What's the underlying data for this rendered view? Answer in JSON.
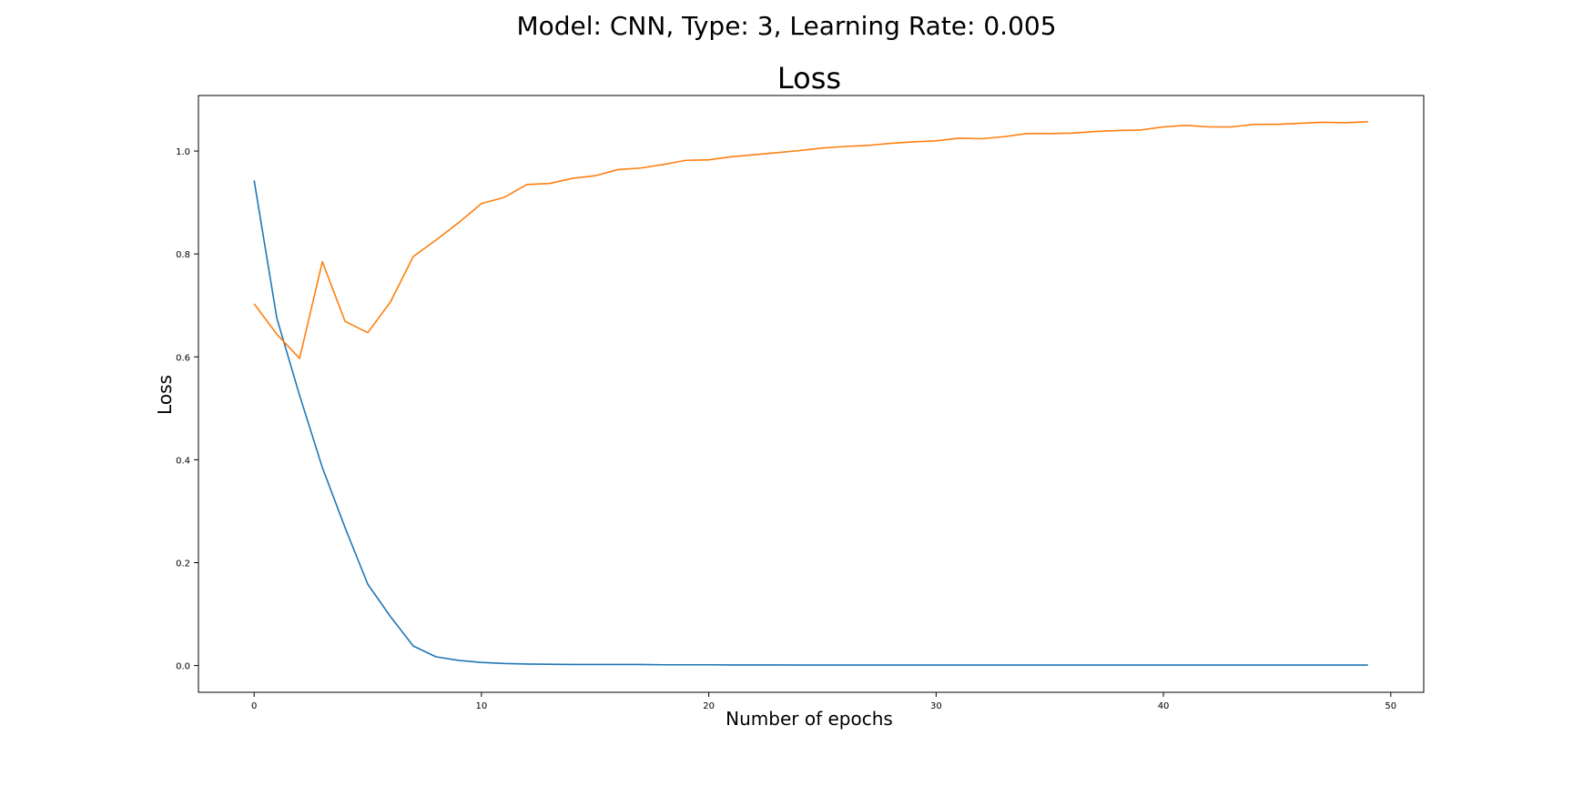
{
  "figure": {
    "suptitle": "Model: CNN, Type: 3, Learning Rate: 0.005"
  },
  "chart_data": {
    "type": "line",
    "title": "Loss",
    "xlabel": "Number of epochs",
    "ylabel": "Loss",
    "xlim": [
      -2.45,
      51.45
    ],
    "ylim": [
      -0.052,
      1.108
    ],
    "xticks": [
      0,
      10,
      20,
      30,
      40,
      50
    ],
    "yticks": [
      0.0,
      0.2,
      0.4,
      0.6,
      0.8,
      1.0
    ],
    "grid": false,
    "x": [
      0,
      1,
      2,
      3,
      4,
      5,
      6,
      7,
      8,
      9,
      10,
      11,
      12,
      13,
      14,
      15,
      16,
      17,
      18,
      19,
      20,
      21,
      22,
      23,
      24,
      25,
      26,
      27,
      28,
      29,
      30,
      31,
      32,
      33,
      34,
      35,
      36,
      37,
      38,
      39,
      40,
      41,
      42,
      43,
      44,
      45,
      46,
      47,
      48,
      49
    ],
    "series": [
      {
        "color": "#1f77b4",
        "values": [
          0.943,
          0.675,
          0.525,
          0.385,
          0.268,
          0.158,
          0.095,
          0.038,
          0.017,
          0.01,
          0.006,
          0.004,
          0.003,
          0.0025,
          0.002,
          0.002,
          0.002,
          0.002,
          0.0015,
          0.0015,
          0.0015,
          0.0012,
          0.0012,
          0.0012,
          0.001,
          0.001,
          0.001,
          0.001,
          0.001,
          0.001,
          0.001,
          0.001,
          0.001,
          0.001,
          0.001,
          0.001,
          0.001,
          0.001,
          0.001,
          0.001,
          0.001,
          0.001,
          0.001,
          0.001,
          0.001,
          0.001,
          0.001,
          0.001,
          0.001,
          0.001
        ]
      },
      {
        "color": "#ff7f0e",
        "values": [
          0.703,
          0.644,
          0.597,
          0.785,
          0.669,
          0.647,
          0.707,
          0.795,
          0.827,
          0.861,
          0.898,
          0.91,
          0.935,
          0.937,
          0.947,
          0.952,
          0.964,
          0.967,
          0.974,
          0.982,
          0.983,
          0.989,
          0.993,
          0.997,
          1.001,
          1.006,
          1.009,
          1.011,
          1.015,
          1.018,
          1.02,
          1.025,
          1.024,
          1.028,
          1.034,
          1.034,
          1.035,
          1.038,
          1.04,
          1.041,
          1.047,
          1.05,
          1.047,
          1.047,
          1.052,
          1.052,
          1.054,
          1.056,
          1.055,
          1.057
        ]
      }
    ]
  }
}
